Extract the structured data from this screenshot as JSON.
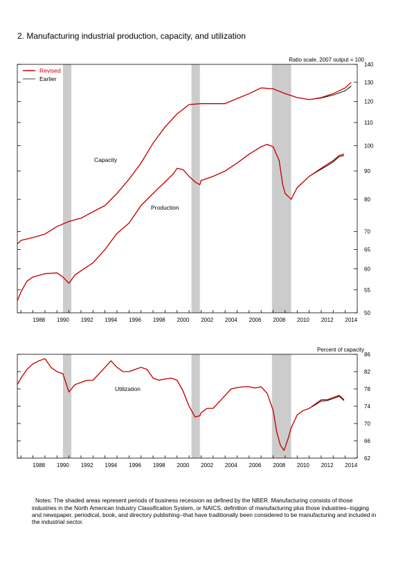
{
  "figure": {
    "title": "2. Manufacturing industrial production, capacity, and utilization",
    "notes": "Notes: The shaded areas represent periods of business recession as defined by the NBER. Manufacturing consists of those industries in the North American Industry Classification System, or NAICS, definition of manufacturing plus those industries--logging and newspaper, periodical, book, and directory  publishing--that have traditionally been considered to be manufacturing and included in the industrial sector."
  },
  "colors": {
    "revised": "#cc0000",
    "earlier": "#000000",
    "recession": "#cccccc"
  },
  "chart_data": [
    {
      "type": "line",
      "ylabel": "Ratio scale, 2007 output = 100",
      "yscale": "log",
      "ylim": [
        50,
        140
      ],
      "xlim": [
        1986.7,
        2015.0
      ],
      "yticks": [
        50,
        55,
        60,
        65,
        70,
        80,
        90,
        100,
        110,
        120,
        130,
        140
      ],
      "xticks": [
        1988,
        1990,
        1992,
        1994,
        1996,
        1998,
        2000,
        2002,
        2004,
        2006,
        2008,
        2010,
        2012,
        2014
      ],
      "legend": {
        "position": "top-left",
        "entries": [
          "Revised",
          "Earlier"
        ]
      },
      "recessions": [
        [
          1990.5,
          1991.2
        ],
        [
          2001.2,
          2001.9
        ],
        [
          2007.9,
          2009.5
        ]
      ],
      "series": [
        {
          "name": "Capacity",
          "label": "Capacity",
          "x": [
            1986.7,
            1987,
            1988,
            1989,
            1990,
            1991,
            1992,
            1993,
            1994,
            1995,
            1996,
            1997,
            1998,
            1999,
            2000,
            2001,
            2002,
            2003,
            2004,
            2005,
            2006,
            2007,
            2008,
            2009,
            2010,
            2011,
            2012,
            2013,
            2014,
            2014.5
          ],
          "revised": [
            66.5,
            67.5,
            68.3,
            69.3,
            71.5,
            73,
            74,
            76,
            78,
            82,
            87,
            93,
            101,
            108,
            114,
            118.5,
            119,
            119,
            119,
            121.5,
            124,
            127,
            126.5,
            124,
            122,
            121,
            122,
            124,
            127,
            130
          ],
          "earlier": [
            66.5,
            67.5,
            68.3,
            69.3,
            71.5,
            73,
            74,
            76,
            78,
            82,
            87,
            93,
            101,
            108,
            114,
            118.5,
            119,
            119,
            119,
            121.5,
            124,
            127,
            126.5,
            124,
            122,
            121,
            121.8,
            123.3,
            125.5,
            128
          ]
        },
        {
          "name": "Production",
          "label": "Production",
          "x": [
            1986.7,
            1987,
            1987.5,
            1988,
            1989,
            1990,
            1990.5,
            1991,
            1991.5,
            1992,
            1993,
            1994,
            1995,
            1996,
            1997,
            1998,
            1999,
            1999.7,
            2000,
            2000.5,
            2001,
            2001.5,
            2001.9,
            2002,
            2003,
            2004,
            2005,
            2006,
            2007,
            2007.5,
            2008,
            2008.5,
            2008.8,
            2009,
            2009.5,
            2010,
            2011,
            2012,
            2012.5,
            2013,
            2013.5,
            2013.9
          ],
          "revised": [
            52.5,
            54.5,
            57,
            58,
            58.8,
            59,
            58,
            56.5,
            58.5,
            59.5,
            61.5,
            65,
            69.5,
            72.5,
            78,
            82,
            86,
            89,
            91,
            90.5,
            88,
            86,
            85,
            86.5,
            88,
            90,
            93,
            96.5,
            99.5,
            100.5,
            99.5,
            94,
            85,
            82,
            80,
            84,
            88,
            91,
            92.5,
            94,
            96,
            96.5
          ],
          "earlier": [
            52.5,
            54.5,
            57,
            58,
            58.8,
            59,
            58,
            56.5,
            58.5,
            59.5,
            61.5,
            65,
            69.5,
            72.5,
            78,
            82,
            86,
            89,
            91,
            90.5,
            88,
            86,
            85,
            86.5,
            88,
            90,
            93,
            96.5,
            99.5,
            100.5,
            99.5,
            94,
            85,
            82,
            80,
            84,
            88,
            90.7,
            92,
            93.5,
            95.5,
            96
          ]
        }
      ]
    },
    {
      "type": "line",
      "ylabel": "Percent of capacity",
      "ylim": [
        62,
        86
      ],
      "xlim": [
        1986.7,
        2015.0
      ],
      "yticks": [
        62,
        66,
        70,
        74,
        78,
        82,
        86
      ],
      "xticks": [
        1988,
        1990,
        1992,
        1994,
        1996,
        1998,
        2000,
        2002,
        2004,
        2006,
        2008,
        2010,
        2012,
        2014
      ],
      "recessions": [
        [
          1990.5,
          1991.2
        ],
        [
          2001.2,
          2001.9
        ],
        [
          2007.9,
          2009.5
        ]
      ],
      "series": [
        {
          "name": "Utilization",
          "label": "Utilization",
          "x": [
            1986.7,
            1987,
            1987.5,
            1988,
            1988.5,
            1989,
            1989.5,
            1990,
            1990.5,
            1990.8,
            1991,
            1991.5,
            1992,
            1992.5,
            1993,
            1993.5,
            1994,
            1994.5,
            1995,
            1995.5,
            1996,
            1996.5,
            1997,
            1997.5,
            1998,
            1998.5,
            1999,
            1999.5,
            2000,
            2000.5,
            2001,
            2001.5,
            2001.9,
            2002,
            2002.5,
            2003,
            2003.5,
            2004,
            2004.5,
            2005,
            2005.5,
            2006,
            2006.5,
            2007,
            2007.5,
            2008,
            2008.3,
            2008.6,
            2008.9,
            2009,
            2009.3,
            2009.5,
            2010,
            2010.5,
            2011,
            2011.5,
            2012,
            2012.5,
            2013,
            2013.5,
            2013.9
          ],
          "revised": [
            79,
            80.5,
            82.5,
            83.8,
            84.5,
            85,
            83,
            82,
            81.5,
            79,
            77.3,
            79,
            79.5,
            80,
            80,
            81.5,
            83,
            84.5,
            83,
            82,
            82,
            82.5,
            83,
            82.5,
            80.5,
            80,
            80.3,
            80.5,
            80,
            77.5,
            74,
            71.5,
            71.8,
            72.5,
            73.5,
            73.5,
            75,
            76.5,
            78,
            78.3,
            78.5,
            78.5,
            78.2,
            78.5,
            77,
            73,
            68,
            65,
            63.8,
            64.5,
            67,
            69,
            72,
            73,
            73.5,
            74.5,
            75.5,
            75.5,
            76,
            76.5,
            75.5
          ],
          "earlier": [
            79,
            80.5,
            82.5,
            83.8,
            84.5,
            85,
            83,
            82,
            81.5,
            79,
            77.3,
            79,
            79.5,
            80,
            80,
            81.5,
            83,
            84.5,
            83,
            82,
            82,
            82.5,
            83,
            82.5,
            80.5,
            80,
            80.3,
            80.5,
            80,
            77.5,
            74,
            71.5,
            71.8,
            72.5,
            73.5,
            73.5,
            75,
            76.5,
            78,
            78.3,
            78.5,
            78.5,
            78.2,
            78.5,
            77,
            73,
            68,
            65,
            63.8,
            64.5,
            67,
            69,
            72,
            73,
            73.5,
            74.3,
            75.2,
            75.3,
            75.8,
            76.3,
            75.3
          ]
        }
      ]
    }
  ]
}
